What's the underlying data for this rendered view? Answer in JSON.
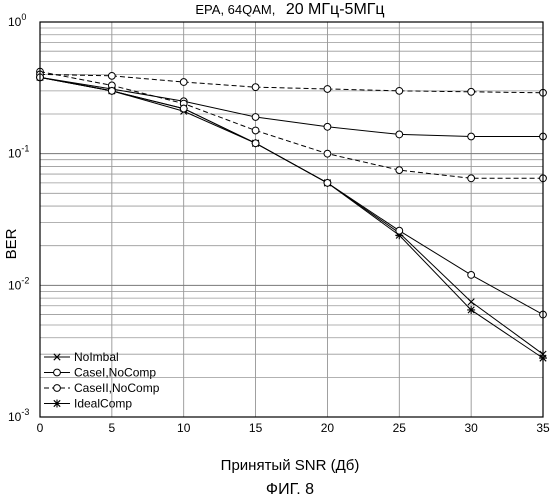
{
  "chart_data": {
    "type": "line",
    "title_parts": [
      "EPA, 64QAM,",
      "20 МГц-5МГц"
    ],
    "xlabel": "Принятый SNR (Дб)",
    "ylabel": "BER",
    "caption": "ФИГ. 8",
    "xlim": [
      0,
      35
    ],
    "ylim": [
      0.001,
      1
    ],
    "yscale": "log",
    "grid": true,
    "legend_position": "bottom-left",
    "x_ticks": [
      "0",
      "5",
      "10",
      "15",
      "20",
      "25",
      "30",
      "35"
    ],
    "y_ticks": [
      {
        "base": "10",
        "exp": "0"
      },
      {
        "base": "10",
        "exp": "-1"
      },
      {
        "base": "10",
        "exp": "-2"
      },
      {
        "base": "10",
        "exp": "-3"
      }
    ],
    "x": [
      0,
      5,
      10,
      15,
      20,
      25,
      30,
      35
    ],
    "series": [
      {
        "name": "NoImbal",
        "marker": "x",
        "dash": "solid",
        "values": [
          0.38,
          0.3,
          0.21,
          0.12,
          0.06,
          0.025,
          0.0075,
          0.003
        ]
      },
      {
        "name": "CaseI,NoComp",
        "marker": "o",
        "dash": "solid",
        "values": [
          0.38,
          0.31,
          0.25,
          0.19,
          0.16,
          0.14,
          0.135,
          0.135
        ]
      },
      {
        "name": "CaseII,NoComp",
        "marker": "o",
        "dash": "dashed",
        "values": [
          0.42,
          0.33,
          0.24,
          0.15,
          0.1,
          0.075,
          0.065,
          0.065
        ]
      },
      {
        "name": "IdealComp",
        "marker": "*",
        "dash": "solid",
        "values": [
          0.38,
          0.3,
          0.22,
          0.12,
          0.06,
          0.024,
          0.0065,
          0.0028
        ]
      }
    ],
    "extra_series": [
      {
        "marker": "o",
        "dash": "dashed",
        "values": [
          0.4,
          0.39,
          0.35,
          0.32,
          0.31,
          0.3,
          0.295,
          0.29
        ]
      },
      {
        "marker": "o",
        "dash": "solid",
        "values": [
          0.38,
          0.3,
          0.22,
          0.12,
          0.06,
          0.026,
          0.012,
          0.006
        ]
      }
    ]
  }
}
